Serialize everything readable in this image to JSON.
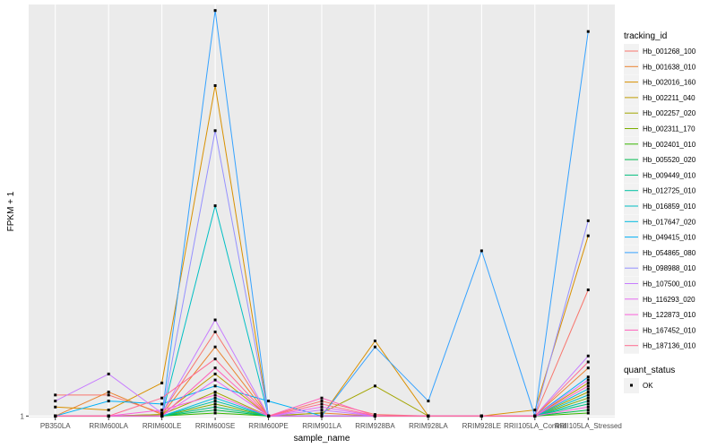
{
  "chart_data": {
    "type": "line",
    "xlabel": "sample_name",
    "ylabel": "FPKM + 1",
    "categories": [
      "PB350LA",
      "RRIM600LA",
      "RRIM600LE",
      "RRIM600SE",
      "RRIM600PE",
      "RRIM901LA",
      "RRIM928BA",
      "RRIM928LA",
      "RRIM928LE",
      "RRII105LA_Control",
      "RRII105LA_Stressed"
    ],
    "y_ticks": [
      1
    ],
    "y_tick_labels": [
      "1"
    ],
    "ylim": [
      0.95,
      14.7
    ],
    "grid": true,
    "legend_placement": "right",
    "legend_title": "tracking_id",
    "legend2_title": "quant_status",
    "legend2_items": [
      {
        "label": "OK",
        "color": "#000000"
      }
    ],
    "series": [
      {
        "name": "Hb_001268_100",
        "color": "#F8766D",
        "values": [
          1.7,
          1.7,
          1.1,
          3.8,
          1.0,
          1.5,
          1.05,
          1.0,
          1.0,
          1.0,
          5.2
        ]
      },
      {
        "name": "Hb_001638_010",
        "color": "#EA8331",
        "values": [
          1.0,
          1.8,
          1.05,
          3.3,
          1.0,
          1.1,
          1.0,
          1.0,
          1.0,
          1.0,
          2.6
        ]
      },
      {
        "name": "Hb_002016_160",
        "color": "#D89000",
        "values": [
          1.3,
          1.2,
          2.1,
          12.0,
          1.0,
          1.0,
          3.5,
          1.0,
          1.0,
          1.2,
          7.0
        ]
      },
      {
        "name": "Hb_002211_040",
        "color": "#C09B00",
        "values": [
          1.0,
          1.0,
          1.05,
          2.4,
          1.0,
          1.0,
          1.0,
          1.0,
          1.0,
          1.0,
          2.1
        ]
      },
      {
        "name": "Hb_002257_020",
        "color": "#A3A500",
        "values": [
          1.0,
          1.0,
          1.05,
          1.8,
          1.0,
          1.1,
          2.0,
          1.0,
          1.0,
          1.0,
          1.8
        ]
      },
      {
        "name": "Hb_002311_170",
        "color": "#7CAE00",
        "values": [
          1.0,
          1.0,
          1.0,
          1.4,
          1.0,
          1.0,
          1.0,
          1.0,
          1.0,
          1.0,
          1.6
        ]
      },
      {
        "name": "Hb_002401_010",
        "color": "#39B600",
        "values": [
          1.0,
          1.0,
          1.0,
          1.1,
          1.0,
          1.0,
          1.0,
          1.0,
          1.0,
          1.0,
          1.1
        ]
      },
      {
        "name": "Hb_005520_020",
        "color": "#00BB4E",
        "values": [
          1.0,
          1.0,
          1.0,
          1.2,
          1.0,
          1.0,
          1.0,
          1.0,
          1.0,
          1.0,
          1.2
        ]
      },
      {
        "name": "Hb_009449_010",
        "color": "#00BF7D",
        "values": [
          1.0,
          1.0,
          1.0,
          1.3,
          1.0,
          1.0,
          1.0,
          1.0,
          1.0,
          1.0,
          1.4
        ]
      },
      {
        "name": "Hb_012725_010",
        "color": "#00C1A3",
        "values": [
          1.0,
          1.0,
          1.0,
          1.5,
          1.0,
          1.0,
          1.0,
          1.0,
          1.0,
          1.0,
          1.5
        ]
      },
      {
        "name": "Hb_016859_010",
        "color": "#00BFC4",
        "values": [
          1.0,
          1.0,
          1.0,
          8.0,
          1.0,
          1.0,
          1.0,
          1.0,
          1.0,
          1.0,
          1.7
        ]
      },
      {
        "name": "Hb_017647_020",
        "color": "#00BAE0",
        "values": [
          1.0,
          1.0,
          1.0,
          1.6,
          1.0,
          1.0,
          1.0,
          1.0,
          1.0,
          1.0,
          1.9
        ]
      },
      {
        "name": "Hb_049415_010",
        "color": "#00B0F6",
        "values": [
          1.0,
          1.5,
          1.4,
          2.0,
          1.5,
          1.0,
          1.0,
          1.0,
          1.0,
          1.0,
          2.3
        ]
      },
      {
        "name": "Hb_054865_080",
        "color": "#35A2FF",
        "values": [
          1.0,
          1.0,
          1.0,
          14.5,
          1.0,
          1.0,
          3.3,
          1.5,
          6.5,
          1.0,
          13.8
        ]
      },
      {
        "name": "Hb_098988_010",
        "color": "#9590FF",
        "values": [
          1.0,
          1.0,
          1.0,
          10.5,
          1.0,
          1.0,
          1.0,
          1.0,
          1.0,
          1.0,
          7.5
        ]
      },
      {
        "name": "Hb_107500_010",
        "color": "#C77CFF",
        "values": [
          1.5,
          2.4,
          1.1,
          4.2,
          1.0,
          1.2,
          1.0,
          1.0,
          1.0,
          1.0,
          3.0
        ]
      },
      {
        "name": "Hb_116293_020",
        "color": "#E76BF3",
        "values": [
          1.0,
          1.0,
          1.0,
          2.2,
          1.0,
          1.3,
          1.0,
          1.0,
          1.0,
          1.0,
          2.2
        ]
      },
      {
        "name": "Hb_122873_010",
        "color": "#FA62DB",
        "values": [
          1.0,
          1.0,
          1.2,
          1.7,
          1.0,
          1.0,
          1.0,
          1.0,
          1.0,
          1.0,
          1.3
        ]
      },
      {
        "name": "Hb_167452_010",
        "color": "#FF62BC",
        "values": [
          1.0,
          1.0,
          1.0,
          2.6,
          1.0,
          1.6,
          1.0,
          1.0,
          1.0,
          1.0,
          2.0
        ]
      },
      {
        "name": "Hb_187136_010",
        "color": "#FF6C91",
        "values": [
          1.0,
          1.0,
          1.6,
          2.9,
          1.0,
          1.4,
          1.0,
          1.0,
          1.0,
          1.0,
          2.8
        ]
      }
    ]
  }
}
